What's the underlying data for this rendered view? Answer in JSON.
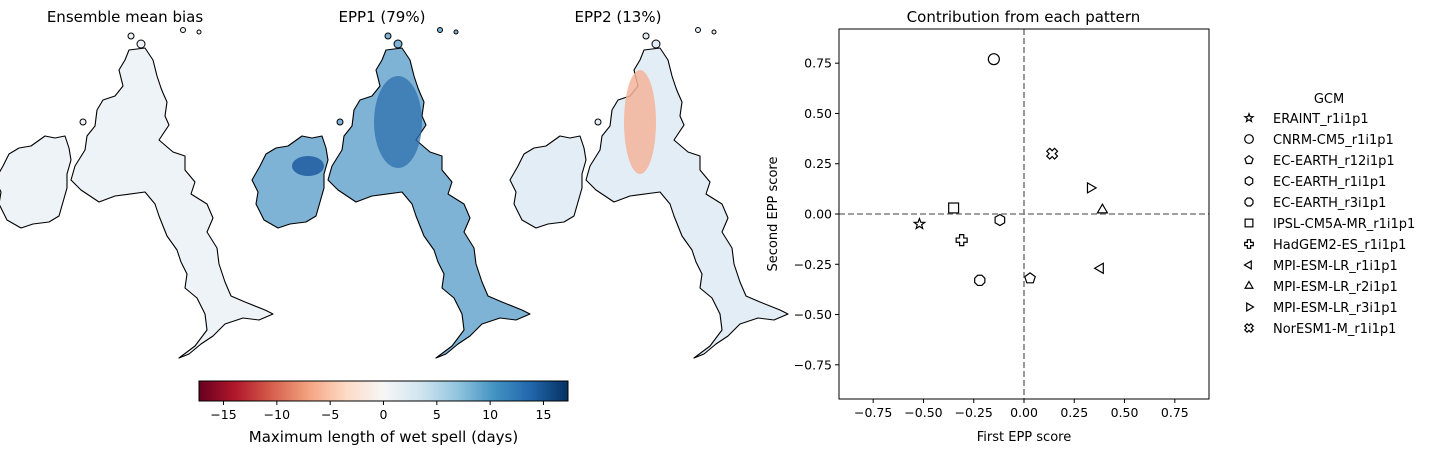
{
  "maps": [
    {
      "title": "Ensemble mean bias",
      "fill": "#eef3f8",
      "accent": "#dbe7f2"
    },
    {
      "title": "EPP1 (79%)",
      "fill": "#7fb3d6",
      "accent": "#2d6fae"
    },
    {
      "title": "EPP2 (13%)",
      "fill": "#e3edf5",
      "accent": "#f3b49a"
    }
  ],
  "colorbar": {
    "label": "Maximum length of wet spell (days)",
    "ticks": [
      "−15",
      "−10",
      "−5",
      "0",
      "5",
      "10",
      "15"
    ],
    "tick_values": [
      -15,
      -10,
      -5,
      0,
      5,
      10,
      15
    ],
    "range": [
      -17.3,
      17.3
    ],
    "colormap": [
      "#67001f",
      "#b2182b",
      "#d6604d",
      "#f4a582",
      "#fddbc7",
      "#f7f7f7",
      "#d1e5f0",
      "#92c5de",
      "#4393c3",
      "#2166ac",
      "#053061"
    ]
  },
  "chart_data": {
    "type": "scatter",
    "title": "Contribution from each pattern",
    "xlabel": "First EPP score",
    "ylabel": "Second EPP score",
    "xlim": [
      -0.92,
      0.92
    ],
    "ylim": [
      -0.92,
      0.92
    ],
    "xticks": [
      "−0.75",
      "−0.50",
      "−0.25",
      "0.00",
      "0.25",
      "0.50",
      "0.75"
    ],
    "xtick_values": [
      -0.75,
      -0.5,
      -0.25,
      0.0,
      0.25,
      0.5,
      0.75
    ],
    "yticks": [
      "0.75",
      "0.50",
      "0.25",
      "0.00",
      "−0.25",
      "−0.50",
      "−0.75"
    ],
    "ytick_values": [
      0.75,
      0.5,
      0.25,
      0.0,
      -0.25,
      -0.5,
      -0.75
    ],
    "reference_lines": {
      "x": 0,
      "y": 0,
      "style": "dashed",
      "color": "#808080"
    },
    "legend_title": "GCM",
    "legend_position": "right",
    "series": [
      {
        "name": "ERAINT_r1i1p1",
        "marker": "star",
        "x": -0.52,
        "y": -0.05
      },
      {
        "name": "CNRM-CM5_r1i1p1",
        "marker": "circle",
        "x": -0.15,
        "y": 0.77
      },
      {
        "name": "EC-EARTH_r12i1p1",
        "marker": "pentagon",
        "x": 0.03,
        "y": -0.32
      },
      {
        "name": "EC-EARTH_r1i1p1",
        "marker": "hexagon",
        "x": -0.12,
        "y": -0.03
      },
      {
        "name": "EC-EARTH_r3i1p1",
        "marker": "octagon",
        "x": -0.22,
        "y": -0.33
      },
      {
        "name": "IPSL-CM5A-MR_r1i1p1",
        "marker": "square",
        "x": -0.35,
        "y": 0.03
      },
      {
        "name": "HadGEM2-ES_r1i1p1",
        "marker": "plus",
        "x": -0.31,
        "y": -0.13
      },
      {
        "name": "MPI-ESM-LR_r1i1p1",
        "marker": "triangle-left",
        "x": 0.38,
        "y": -0.27
      },
      {
        "name": "MPI-ESM-LR_r2i1p1",
        "marker": "triangle-up",
        "x": 0.39,
        "y": 0.02
      },
      {
        "name": "MPI-ESM-LR_r3i1p1",
        "marker": "triangle-right",
        "x": 0.33,
        "y": 0.13
      },
      {
        "name": "NorESM1-M_r1i1p1",
        "marker": "x-filled",
        "x": 0.14,
        "y": 0.3
      }
    ]
  }
}
